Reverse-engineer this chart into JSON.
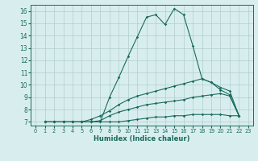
{
  "xlabel": "Humidex (Indice chaleur)",
  "bg_color": "#d8eeee",
  "grid_color": "#b0cccc",
  "line_color": "#1a6b5a",
  "xlim": [
    -0.5,
    23.5
  ],
  "ylim": [
    6.7,
    16.5
  ],
  "xticks": [
    0,
    1,
    2,
    3,
    4,
    5,
    6,
    7,
    8,
    9,
    10,
    11,
    12,
    13,
    14,
    15,
    16,
    17,
    18,
    19,
    20,
    21,
    22,
    23
  ],
  "yticks": [
    7,
    8,
    9,
    10,
    11,
    12,
    13,
    14,
    15,
    16
  ],
  "curve1_x": [
    1,
    2,
    3,
    4,
    5,
    6,
    7,
    8,
    9,
    10,
    11,
    12,
    13,
    14,
    15,
    16,
    17,
    18,
    19,
    20,
    21,
    22
  ],
  "curve1_y": [
    7,
    7,
    7,
    7,
    7,
    7,
    7,
    9,
    10.6,
    12.3,
    13.9,
    15.5,
    15.7,
    14.9,
    16.2,
    15.7,
    13.2,
    10.5,
    10.2,
    9.8,
    9.5,
    7.5
  ],
  "curve2_x": [
    1,
    2,
    3,
    4,
    5,
    6,
    7,
    8,
    9,
    10,
    11,
    12,
    13,
    14,
    15,
    16,
    17,
    18,
    19,
    20,
    21,
    22
  ],
  "curve2_y": [
    7,
    7,
    7,
    7,
    7,
    7.2,
    7.5,
    7.9,
    8.4,
    8.8,
    9.1,
    9.3,
    9.5,
    9.7,
    9.9,
    10.1,
    10.3,
    10.5,
    10.2,
    9.6,
    9.2,
    7.5
  ],
  "curve3_x": [
    1,
    2,
    3,
    4,
    5,
    6,
    7,
    8,
    9,
    10,
    11,
    12,
    13,
    14,
    15,
    16,
    17,
    18,
    19,
    20,
    21,
    22
  ],
  "curve3_y": [
    7,
    7,
    7,
    7,
    7,
    7,
    7.1,
    7.5,
    7.8,
    8.0,
    8.2,
    8.4,
    8.5,
    8.6,
    8.7,
    8.8,
    9.0,
    9.1,
    9.2,
    9.3,
    9.1,
    7.5
  ],
  "curve4_x": [
    1,
    2,
    3,
    4,
    5,
    6,
    7,
    8,
    9,
    10,
    11,
    12,
    13,
    14,
    15,
    16,
    17,
    18,
    19,
    20,
    21,
    22
  ],
  "curve4_y": [
    7,
    7,
    7,
    7,
    7,
    7,
    7,
    7,
    7,
    7.1,
    7.2,
    7.3,
    7.4,
    7.4,
    7.5,
    7.5,
    7.6,
    7.6,
    7.6,
    7.6,
    7.5,
    7.5
  ]
}
